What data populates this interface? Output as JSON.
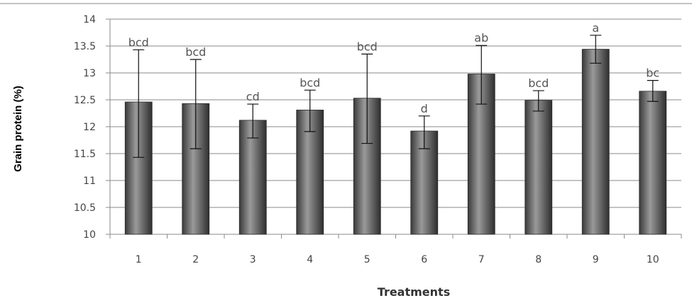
{
  "chart_data": {
    "type": "bar",
    "title": "",
    "xlabel": "Treatments",
    "ylabel": "Grain protein (%)",
    "ylim": [
      10,
      14
    ],
    "y_ticks": [
      "10",
      "10.5",
      "11",
      "11.5",
      "12",
      "12.5",
      "13",
      "13.5",
      "14"
    ],
    "grid": true,
    "categories": [
      "1",
      "2",
      "3",
      "4",
      "5",
      "6",
      "7",
      "8",
      "9",
      "10"
    ],
    "values": [
      12.46,
      12.43,
      12.12,
      12.31,
      12.53,
      11.92,
      12.98,
      12.49,
      13.44,
      12.66
    ],
    "error_low": [
      11.43,
      11.59,
      11.79,
      11.91,
      11.69,
      11.59,
      12.42,
      12.29,
      13.18,
      12.47
    ],
    "error_high": [
      13.43,
      13.25,
      12.42,
      12.68,
      13.35,
      12.2,
      13.51,
      12.67,
      13.7,
      12.86
    ],
    "significance_labels": [
      "bcd",
      "bcd",
      "cd",
      "bcd",
      "bcd",
      "d",
      "ab",
      "bcd",
      "a",
      "bc"
    ],
    "bar_color": "#5a5a5a"
  }
}
